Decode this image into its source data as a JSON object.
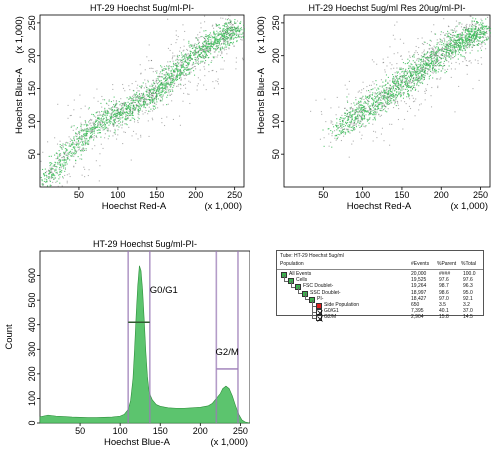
{
  "chart_data": [
    {
      "type": "scatter",
      "title": "HT-29 Hoechst 5ug/ml-PI-",
      "xlabel": "Hoechst Red-A",
      "ylabel": "Hoechst Blue-A",
      "x_multiplier": "(x 1,000)",
      "y_multiplier": "(x 1,000)",
      "xlim": [
        0,
        262
      ],
      "ylim": [
        0,
        262
      ],
      "x_ticks": [
        50,
        100,
        150,
        200,
        250
      ],
      "y_ticks": [
        50,
        100,
        150,
        200,
        250
      ],
      "density_ridge": [
        [
          0,
          0
        ],
        [
          20,
          32
        ],
        [
          50,
          72
        ],
        [
          80,
          102
        ],
        [
          110,
          118
        ],
        [
          140,
          138
        ],
        [
          170,
          172
        ],
        [
          200,
          204
        ],
        [
          230,
          228
        ],
        [
          255,
          240
        ]
      ],
      "colors": {
        "dense": "#3dbd5a",
        "sparse": "#555555"
      }
    },
    {
      "type": "scatter",
      "title": "HT-29 Hoechst 5ug/ml Res 20ug/ml-PI-",
      "xlabel": "Hoechst Red-A",
      "ylabel": "Hoechst Blue-A",
      "x_multiplier": "(x 1,000)",
      "y_multiplier": "(x 1,000)",
      "xlim": [
        0,
        262
      ],
      "ylim": [
        0,
        262
      ],
      "x_ticks": [
        50,
        100,
        150,
        200,
        250
      ],
      "y_ticks": [
        50,
        100,
        150,
        200,
        250
      ],
      "density_ridge": [
        [
          50,
          70
        ],
        [
          80,
          100
        ],
        [
          110,
          125
        ],
        [
          140,
          150
        ],
        [
          170,
          178
        ],
        [
          200,
          205
        ],
        [
          230,
          228
        ],
        [
          255,
          242
        ]
      ],
      "colors": {
        "dense": "#3dbd5a",
        "sparse": "#555555"
      }
    },
    {
      "type": "area",
      "title": "HT-29 Hoechst 5ug/ml-PI-",
      "xlabel": "Hoechst Blue-A",
      "ylabel": "Count",
      "x_multiplier": "(x 1,000)",
      "xlim": [
        0,
        262
      ],
      "ylim": [
        0,
        700
      ],
      "x_ticks": [
        50,
        100,
        150,
        200,
        250
      ],
      "y_ticks": [
        0,
        100,
        200,
        300,
        400,
        500,
        600
      ],
      "x": [
        0,
        10,
        20,
        30,
        40,
        50,
        60,
        70,
        80,
        90,
        100,
        105,
        110,
        113,
        116,
        118,
        120,
        122,
        124,
        126,
        128,
        130,
        132,
        134,
        136,
        138,
        140,
        145,
        150,
        160,
        170,
        180,
        190,
        200,
        210,
        215,
        220,
        225,
        228,
        232,
        236,
        240,
        244,
        248,
        252,
        256,
        262
      ],
      "values": [
        25,
        32,
        28,
        26,
        24,
        23,
        22,
        22,
        23,
        24,
        28,
        35,
        55,
        90,
        180,
        300,
        440,
        560,
        640,
        620,
        540,
        420,
        290,
        190,
        130,
        110,
        95,
        75,
        68,
        62,
        60,
        60,
        62,
        64,
        70,
        80,
        100,
        120,
        140,
        150,
        140,
        110,
        70,
        35,
        12,
        4,
        0
      ],
      "gates": [
        {
          "name": "G0/G1",
          "range": [
            110,
            137
          ],
          "y": 410
        },
        {
          "name": "G2/M",
          "range": [
            220,
            247
          ],
          "y": 220
        }
      ],
      "colors": {
        "fill": "#5cc46e",
        "stroke": "#2e8f3c",
        "gate": "#9b7bb6"
      }
    }
  ],
  "table": {
    "tube_label": "Tube:  HT-29 Hoechst 5ug/ml",
    "headers": {
      "population": "Population",
      "events": "#Events",
      "parent": "%Parent",
      "total": "%Total"
    },
    "rows": [
      {
        "name": "All Events",
        "events": "20,000",
        "parent": "####",
        "total": "100.0",
        "level": 0,
        "swatch": "#3db34f"
      },
      {
        "name": "Cells",
        "events": "19,525",
        "parent": "97.6",
        "total": "97.6",
        "level": 1,
        "swatch": "#3db34f"
      },
      {
        "name": "FSC Doublet-",
        "events": "19,264",
        "parent": "98.7",
        "total": "96.3",
        "level": 2,
        "swatch": "#3db34f"
      },
      {
        "name": "SSC Doublet-",
        "events": "18,997",
        "parent": "98.6",
        "total": "95.0",
        "level": 3,
        "swatch": "#3db34f"
      },
      {
        "name": "PI-",
        "events": "18,427",
        "parent": "97.0",
        "total": "92.1",
        "level": 4,
        "swatch": "#3db34f"
      },
      {
        "name": "Side Population",
        "events": "650",
        "parent": "3.5",
        "total": "3.2",
        "level": 5,
        "swatch": "#e02020"
      },
      {
        "name": "G0/G1",
        "events": "7,395",
        "parent": "40.1",
        "total": "37.0",
        "level": 5,
        "swatch": "cross"
      },
      {
        "name": "G2/M",
        "events": "2,904",
        "parent": "15.8",
        "total": "14.5",
        "level": 5,
        "swatch": "cross"
      }
    ]
  }
}
